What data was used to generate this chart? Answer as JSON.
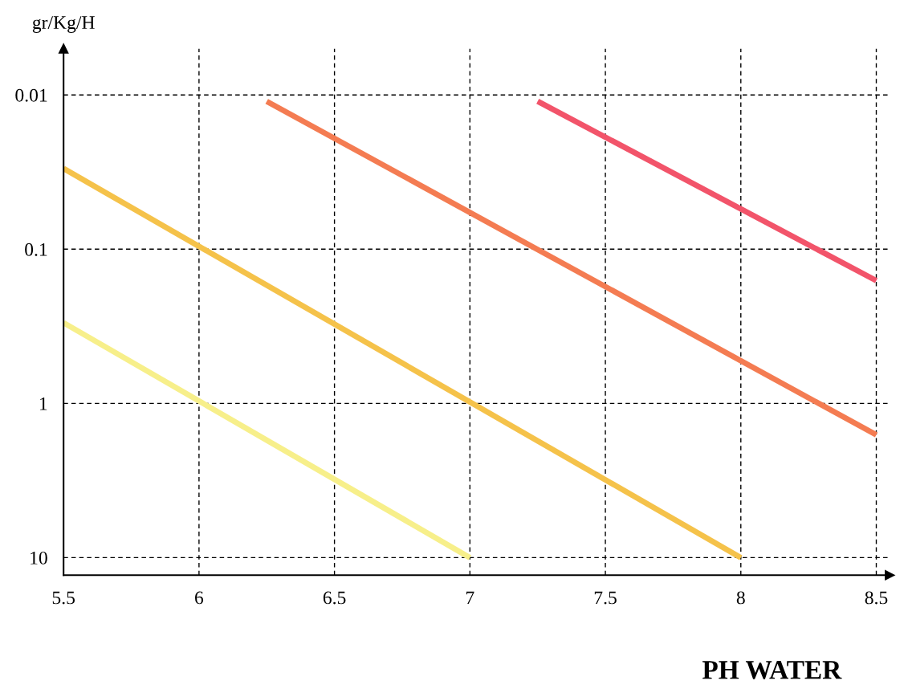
{
  "chart_data": {
    "type": "line",
    "xlabel": "PH WATER",
    "ylabel": "gr/Kg/H",
    "log": "y",
    "grid": true,
    "legend": false,
    "marker": "none",
    "line_style": "solid",
    "xlim": [
      5.5,
      8.55
    ],
    "xticks": [
      5.5,
      6,
      6.5,
      7,
      7.5,
      8,
      8.5
    ],
    "ylim": [
      13,
      0.005
    ],
    "yticks": [
      0.01,
      0.1,
      1,
      10
    ],
    "series": [
      {
        "color": "#f7ef8a",
        "x": [
          5.5,
          7
        ],
        "values": [
          0.3,
          10
        ]
      },
      {
        "color": "#f5c24a",
        "x": [
          5.5,
          8
        ],
        "values": [
          0.03,
          10
        ]
      },
      {
        "color": "#f47c52",
        "x": [
          6.25,
          8.5
        ],
        "values": [
          0.011,
          1.6
        ]
      },
      {
        "color": "#f2546a",
        "x": [
          7.25,
          8.5
        ],
        "values": [
          0.011,
          0.16
        ]
      }
    ]
  }
}
